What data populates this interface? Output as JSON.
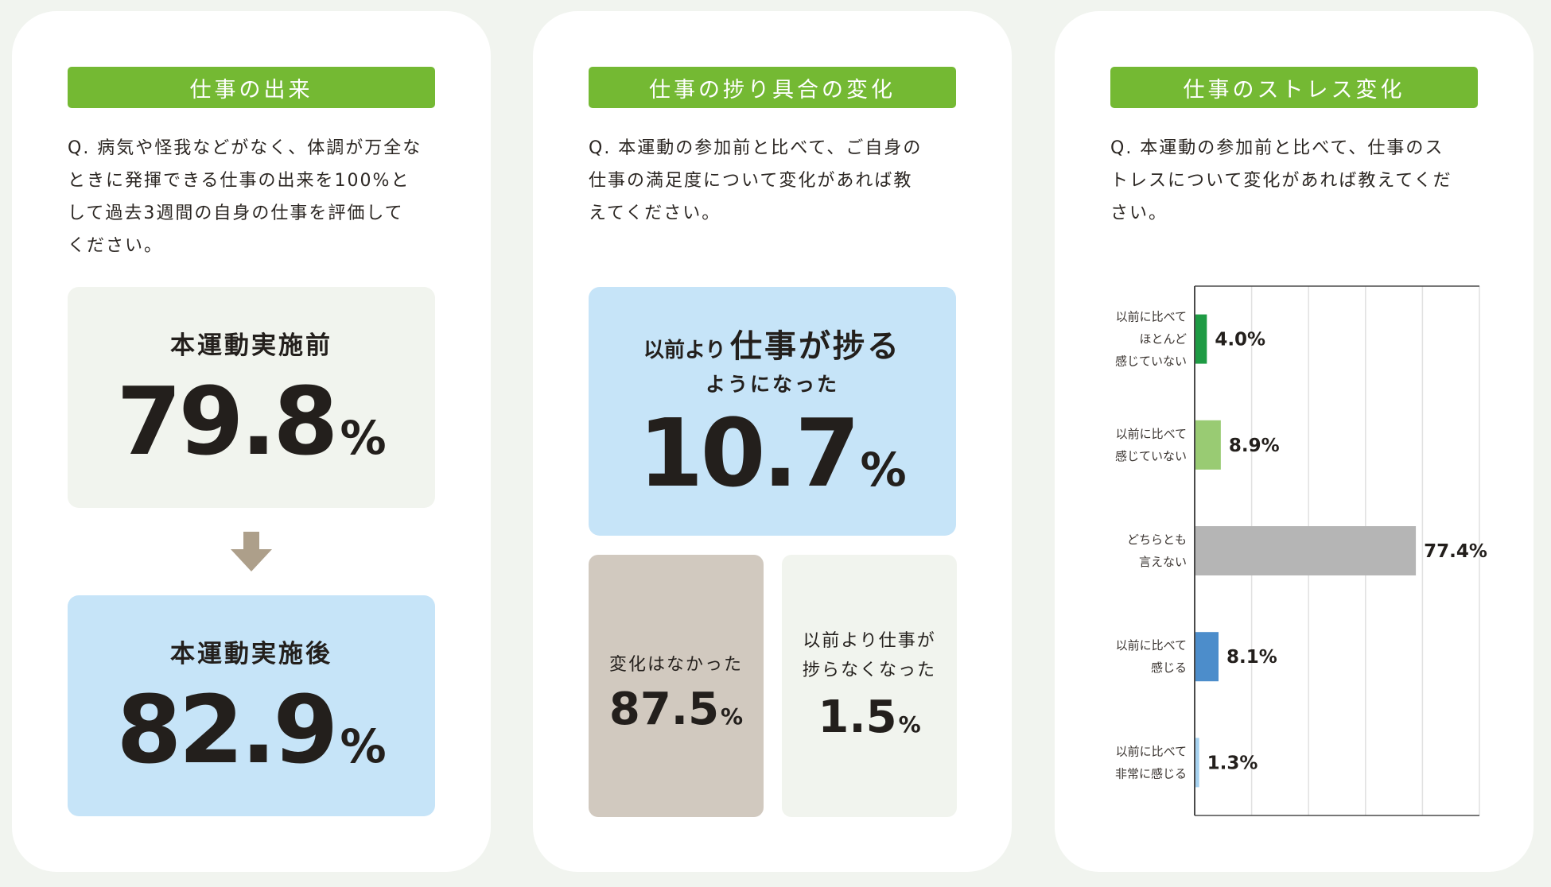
{
  "card1": {
    "title": "仕事の出来",
    "question": "Q. 病気や怪我などがなく、体調が万全な\nときに発揮できる仕事の出来を100%と\nして過去3週間の自身の仕事を評価して\nください。",
    "before": {
      "label": "本運動実施前",
      "value": "79.8",
      "unit": "%"
    },
    "after": {
      "label": "本運動実施後",
      "value": "82.9",
      "unit": "%"
    },
    "arrow_icon": "arrow-down-icon"
  },
  "card2": {
    "title": "仕事の捗り具合の変化",
    "question": "Q. 本運動の参加前と比べて、ご自身の\n仕事の満足度について変化があれば教\nえてください。",
    "progress": {
      "label_small": "以前より",
      "label_large": "仕事が捗る",
      "label_line2": "ようになった",
      "value": "10.7",
      "unit": "%"
    },
    "no_change": {
      "label": "変化はなかった",
      "value": "87.5",
      "unit": "%"
    },
    "less": {
      "label": "以前より仕事が\n捗らなくなった",
      "value": "1.5",
      "unit": "%"
    }
  },
  "card3": {
    "title": "仕事のストレス変化",
    "question": "Q. 本運動の参加前と比べて、仕事のス\nトレスについて変化があれば教えてくだ\nさい。"
  },
  "chart_data": {
    "type": "bar",
    "orientation": "horizontal",
    "categories": [
      [
        "以前に比べて",
        "ほとんど",
        "感じていない"
      ],
      [
        "以前に比べて",
        "感じていない"
      ],
      [
        "どちらとも",
        "言えない"
      ],
      [
        "以前に比べて",
        "感じる"
      ],
      [
        "以前に比べて",
        "非常に感じる"
      ]
    ],
    "values": [
      4.0,
      8.9,
      77.4,
      8.1,
      1.3
    ],
    "value_labels": [
      "4.0%",
      "8.9%",
      "77.4%",
      "8.1%",
      "1.3%"
    ],
    "colors": [
      "#1e9b44",
      "#99cb73",
      "#b5b5b5",
      "#4c8dcb",
      "#a6d2f0"
    ],
    "xlim": [
      0,
      100
    ],
    "grid": true
  }
}
